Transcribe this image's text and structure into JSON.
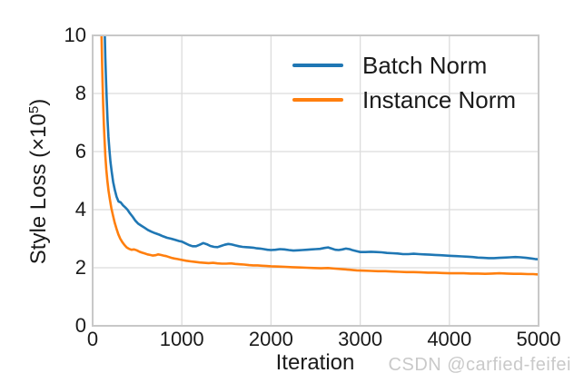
{
  "watermark": "CSDN @carfied-feifei",
  "colors": {
    "background": "#ffffff",
    "grid": "#dcdcdc",
    "spine": "#c8c8c8",
    "text": "#1a1a1a",
    "watermark": "#c9c9c9",
    "batch_norm": "#1f77b4",
    "instance_norm": "#ff7f0e"
  },
  "chart_data": {
    "type": "line",
    "title": "",
    "xlabel": "Iteration",
    "ylabel": "Style Loss (×10⁵)",
    "ylabel_parts": {
      "prefix": "Style Loss (×10",
      "sup": "5",
      "suffix": ")"
    },
    "xlim": [
      0,
      5000
    ],
    "ylim": [
      0,
      10
    ],
    "xticks": [
      0,
      1000,
      2000,
      3000,
      4000,
      5000
    ],
    "yticks": [
      0,
      2,
      4,
      6,
      8,
      10
    ],
    "grid": true,
    "legend_position": "upper right",
    "series": [
      {
        "name": "Batch Norm",
        "color": "#1f77b4",
        "points": [
          [
            129,
            10.9
          ],
          [
            136,
            10.0
          ],
          [
            143,
            9.2
          ],
          [
            150,
            8.5
          ],
          [
            158,
            7.8
          ],
          [
            167,
            7.1
          ],
          [
            177,
            6.5
          ],
          [
            188,
            6.05
          ],
          [
            200,
            5.65
          ],
          [
            214,
            5.3
          ],
          [
            230,
            4.95
          ],
          [
            248,
            4.68
          ],
          [
            268,
            4.45
          ],
          [
            290,
            4.28
          ],
          [
            315,
            4.25
          ],
          [
            340,
            4.15
          ],
          [
            365,
            4.08
          ],
          [
            390,
            4.0
          ],
          [
            420,
            3.87
          ],
          [
            450,
            3.75
          ],
          [
            480,
            3.62
          ],
          [
            510,
            3.52
          ],
          [
            545,
            3.45
          ],
          [
            580,
            3.38
          ],
          [
            620,
            3.3
          ],
          [
            660,
            3.24
          ],
          [
            700,
            3.19
          ],
          [
            745,
            3.14
          ],
          [
            790,
            3.08
          ],
          [
            835,
            3.03
          ],
          [
            880,
            3.0
          ],
          [
            925,
            2.96
          ],
          [
            970,
            2.92
          ],
          [
            1000,
            2.9
          ],
          [
            1040,
            2.84
          ],
          [
            1080,
            2.78
          ],
          [
            1120,
            2.74
          ],
          [
            1160,
            2.74
          ],
          [
            1200,
            2.79
          ],
          [
            1240,
            2.85
          ],
          [
            1280,
            2.81
          ],
          [
            1320,
            2.75
          ],
          [
            1360,
            2.72
          ],
          [
            1400,
            2.71
          ],
          [
            1440,
            2.75
          ],
          [
            1480,
            2.79
          ],
          [
            1520,
            2.82
          ],
          [
            1560,
            2.8
          ],
          [
            1600,
            2.77
          ],
          [
            1640,
            2.74
          ],
          [
            1680,
            2.72
          ],
          [
            1720,
            2.71
          ],
          [
            1760,
            2.7
          ],
          [
            1800,
            2.69
          ],
          [
            1840,
            2.67
          ],
          [
            1880,
            2.66
          ],
          [
            1920,
            2.64
          ],
          [
            1960,
            2.62
          ],
          [
            2000,
            2.61
          ],
          [
            2050,
            2.62
          ],
          [
            2100,
            2.64
          ],
          [
            2150,
            2.63
          ],
          [
            2200,
            2.61
          ],
          [
            2250,
            2.59
          ],
          [
            2300,
            2.6
          ],
          [
            2350,
            2.61
          ],
          [
            2400,
            2.62
          ],
          [
            2450,
            2.63
          ],
          [
            2500,
            2.64
          ],
          [
            2550,
            2.65
          ],
          [
            2600,
            2.68
          ],
          [
            2640,
            2.7
          ],
          [
            2680,
            2.66
          ],
          [
            2720,
            2.62
          ],
          [
            2760,
            2.61
          ],
          [
            2800,
            2.63
          ],
          [
            2840,
            2.66
          ],
          [
            2880,
            2.64
          ],
          [
            2920,
            2.6
          ],
          [
            2960,
            2.57
          ],
          [
            3000,
            2.54
          ],
          [
            3060,
            2.54
          ],
          [
            3120,
            2.55
          ],
          [
            3180,
            2.54
          ],
          [
            3240,
            2.53
          ],
          [
            3300,
            2.51
          ],
          [
            3360,
            2.5
          ],
          [
            3420,
            2.49
          ],
          [
            3480,
            2.47
          ],
          [
            3540,
            2.47
          ],
          [
            3600,
            2.48
          ],
          [
            3660,
            2.47
          ],
          [
            3720,
            2.46
          ],
          [
            3780,
            2.45
          ],
          [
            3840,
            2.44
          ],
          [
            3900,
            2.43
          ],
          [
            3960,
            2.42
          ],
          [
            4020,
            2.41
          ],
          [
            4080,
            2.4
          ],
          [
            4140,
            2.39
          ],
          [
            4200,
            2.38
          ],
          [
            4260,
            2.37
          ],
          [
            4320,
            2.35
          ],
          [
            4380,
            2.34
          ],
          [
            4440,
            2.33
          ],
          [
            4500,
            2.33
          ],
          [
            4560,
            2.34
          ],
          [
            4620,
            2.35
          ],
          [
            4680,
            2.36
          ],
          [
            4740,
            2.37
          ],
          [
            4800,
            2.36
          ],
          [
            4860,
            2.34
          ],
          [
            4920,
            2.32
          ],
          [
            4960,
            2.3
          ],
          [
            5000,
            2.29
          ]
        ]
      },
      {
        "name": "Instance Norm",
        "color": "#ff7f0e",
        "points": [
          [
            95,
            10.9
          ],
          [
            100,
            10.0
          ],
          [
            105,
            9.2
          ],
          [
            111,
            8.4
          ],
          [
            118,
            7.6
          ],
          [
            126,
            6.9
          ],
          [
            134,
            6.35
          ],
          [
            143,
            5.85
          ],
          [
            153,
            5.4
          ],
          [
            165,
            5.0
          ],
          [
            178,
            4.65
          ],
          [
            193,
            4.35
          ],
          [
            210,
            4.05
          ],
          [
            228,
            3.8
          ],
          [
            247,
            3.55
          ],
          [
            267,
            3.35
          ],
          [
            288,
            3.15
          ],
          [
            310,
            3.0
          ],
          [
            333,
            2.88
          ],
          [
            357,
            2.78
          ],
          [
            382,
            2.7
          ],
          [
            408,
            2.65
          ],
          [
            435,
            2.62
          ],
          [
            465,
            2.63
          ],
          [
            495,
            2.6
          ],
          [
            525,
            2.55
          ],
          [
            555,
            2.52
          ],
          [
            585,
            2.49
          ],
          [
            615,
            2.46
          ],
          [
            645,
            2.44
          ],
          [
            675,
            2.42
          ],
          [
            705,
            2.43
          ],
          [
            735,
            2.46
          ],
          [
            765,
            2.44
          ],
          [
            795,
            2.42
          ],
          [
            825,
            2.4
          ],
          [
            855,
            2.37
          ],
          [
            885,
            2.34
          ],
          [
            915,
            2.32
          ],
          [
            950,
            2.3
          ],
          [
            1000,
            2.27
          ],
          [
            1050,
            2.24
          ],
          [
            1100,
            2.22
          ],
          [
            1150,
            2.2
          ],
          [
            1200,
            2.18
          ],
          [
            1250,
            2.17
          ],
          [
            1300,
            2.16
          ],
          [
            1350,
            2.17
          ],
          [
            1400,
            2.15
          ],
          [
            1450,
            2.14
          ],
          [
            1500,
            2.14
          ],
          [
            1550,
            2.15
          ],
          [
            1600,
            2.13
          ],
          [
            1650,
            2.12
          ],
          [
            1700,
            2.11
          ],
          [
            1750,
            2.09
          ],
          [
            1800,
            2.08
          ],
          [
            1850,
            2.08
          ],
          [
            1900,
            2.07
          ],
          [
            1950,
            2.06
          ],
          [
            2000,
            2.05
          ],
          [
            2080,
            2.04
          ],
          [
            2160,
            2.03
          ],
          [
            2240,
            2.02
          ],
          [
            2320,
            2.01
          ],
          [
            2400,
            2.0
          ],
          [
            2480,
            1.99
          ],
          [
            2560,
            1.98
          ],
          [
            2640,
            1.99
          ],
          [
            2720,
            1.97
          ],
          [
            2800,
            1.95
          ],
          [
            2880,
            1.93
          ],
          [
            2960,
            1.91
          ],
          [
            3040,
            1.9
          ],
          [
            3120,
            1.89
          ],
          [
            3200,
            1.88
          ],
          [
            3280,
            1.88
          ],
          [
            3360,
            1.87
          ],
          [
            3440,
            1.86
          ],
          [
            3520,
            1.85
          ],
          [
            3600,
            1.85
          ],
          [
            3680,
            1.84
          ],
          [
            3760,
            1.83
          ],
          [
            3840,
            1.83
          ],
          [
            3920,
            1.82
          ],
          [
            4000,
            1.81
          ],
          [
            4080,
            1.81
          ],
          [
            4160,
            1.81
          ],
          [
            4240,
            1.8
          ],
          [
            4320,
            1.8
          ],
          [
            4400,
            1.79
          ],
          [
            4480,
            1.8
          ],
          [
            4560,
            1.81
          ],
          [
            4640,
            1.8
          ],
          [
            4720,
            1.79
          ],
          [
            4800,
            1.79
          ],
          [
            4880,
            1.78
          ],
          [
            4940,
            1.78
          ],
          [
            5000,
            1.77
          ]
        ]
      }
    ]
  }
}
